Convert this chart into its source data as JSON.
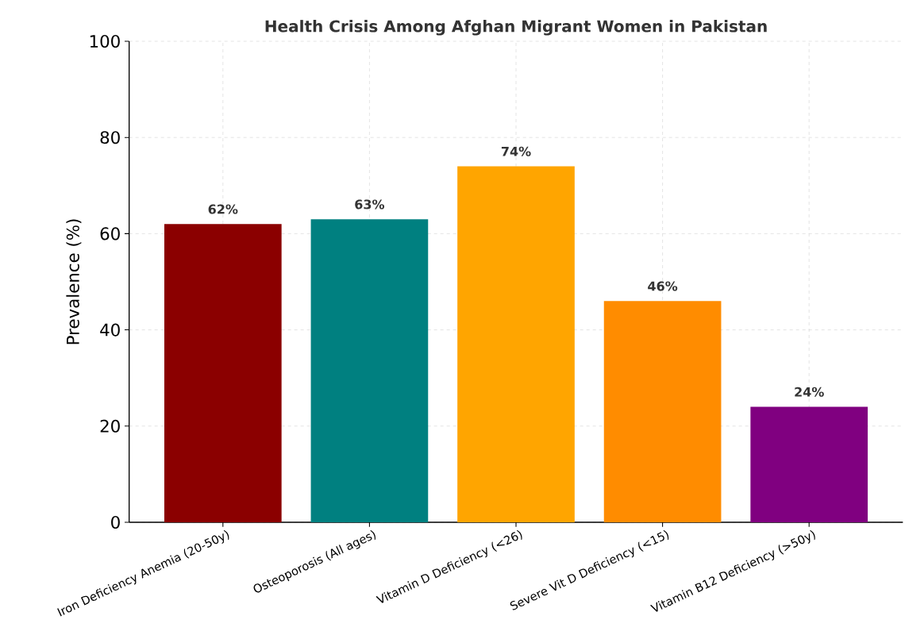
{
  "chart_data": {
    "type": "bar",
    "title": "Health Crisis Among Afghan Migrant Women in Pakistan",
    "ylabel": "Prevalence (%)",
    "categories": [
      "Iron Deficiency Anemia (20-50y)",
      "Osteoporosis (All ages)",
      "Vitamin D Deficiency (<26)",
      "Severe Vit D Deficiency (<15)",
      "Vitamin B12 Deficiency (>50y)"
    ],
    "values": [
      62,
      63,
      74,
      46,
      24
    ],
    "colors": [
      "#8b0000",
      "#008080",
      "#ffa500",
      "#ff8c00",
      "#800080"
    ],
    "value_labels": [
      "62%",
      "63%",
      "74%",
      "46%",
      "24%"
    ],
    "ylim": [
      0,
      100
    ],
    "yticks": [
      0,
      20,
      40,
      60,
      80,
      100
    ],
    "grid": true
  }
}
